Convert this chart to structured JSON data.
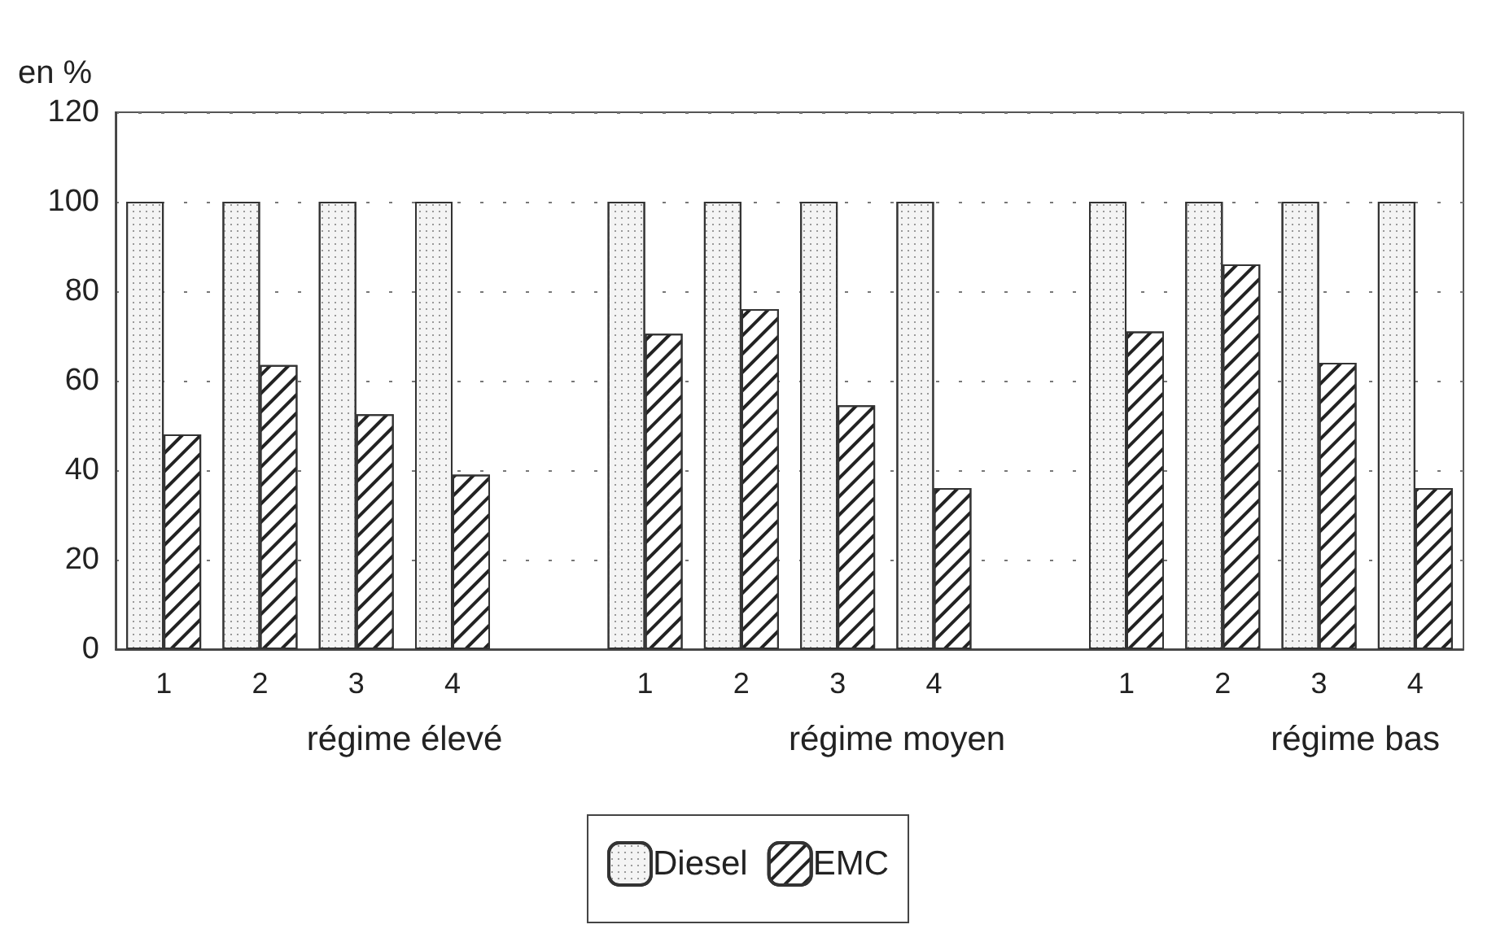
{
  "chart_data": {
    "type": "bar",
    "ylabel": "en %",
    "categories": [
      "1",
      "2",
      "3",
      "4",
      null,
      "1",
      "2",
      "3",
      "4",
      null,
      "1",
      "2",
      "3",
      "4"
    ],
    "series": [
      {
        "name": "Diesel",
        "color": "#f4f4f4",
        "values": [
          100,
          100,
          100,
          100,
          null,
          100,
          100,
          100,
          100,
          null,
          100,
          100,
          100,
          100
        ]
      },
      {
        "name": "EMC",
        "color": "#ffffff",
        "values": [
          48,
          63.5,
          52.5,
          39,
          null,
          70.5,
          76,
          54.5,
          36,
          null,
          71,
          86,
          64,
          36
        ]
      }
    ],
    "annotations": [
      "régime élevé",
      "régime moyen",
      "régime bas"
    ],
    "ylim": [
      0,
      120
    ],
    "yticks": [
      0,
      20,
      40,
      60,
      80,
      100,
      120
    ],
    "grid": "y",
    "legend": "bottom"
  }
}
